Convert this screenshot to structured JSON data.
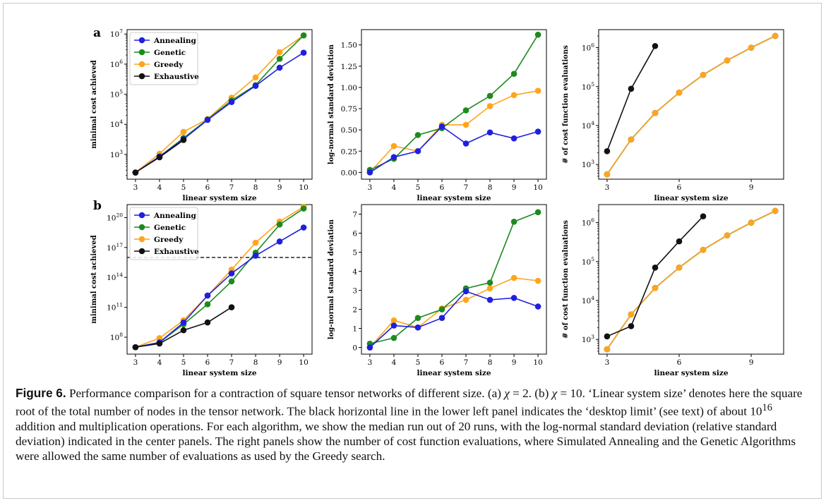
{
  "figure": {
    "panel_labels": [
      "a",
      "b"
    ]
  },
  "caption": {
    "label": "Figure 6.",
    "parts": [
      " Performance comparison for a contraction of square tensor networks of different size. (a) ",
      "χ",
      " = 2. (b) ",
      "χ",
      " = 10. ‘Linear system size’ denotes here the square root of the total number of nodes in the tensor network. The black horizontal line in the lower left panel indicates the ‘desktop limit’ (see text) of about 10",
      "16",
      " addition and multiplication operations. For each algorithm, we show the median run out of 20 runs, with the log-normal standard deviation (relative standard deviation) indicated in the center panels. The right panels show the number of cost function evaluations, where Simulated Annealing and the Genetic Algorithms were allowed the same number of evaluations as used by the Greedy search."
    ]
  },
  "colors": {
    "Annealing": "#1f1fe0",
    "Genetic": "#1e8a1e",
    "Greedy": "#ffa41c",
    "Exhaustive": "#111111"
  },
  "chart_data": [
    {
      "id": "a-left",
      "panel": "a",
      "type": "line",
      "scale": "log",
      "xlabel": "linear system size",
      "ylabel": "minimal cost achieved",
      "xlim": [
        2.65,
        10.35
      ],
      "ylim": [
        150,
        14000000
      ],
      "xticks": [
        3,
        4,
        5,
        6,
        7,
        8,
        9,
        10
      ],
      "yticks": [
        {
          "value": 1000,
          "base": "10",
          "exp": "3"
        },
        {
          "value": 10000,
          "base": "10",
          "exp": "4"
        },
        {
          "value": 100000,
          "base": "10",
          "exp": "5"
        },
        {
          "value": 1000000,
          "base": "10",
          "exp": "6"
        },
        {
          "value": 10000000,
          "base": "10",
          "exp": "7"
        }
      ],
      "legend": {
        "position": "upper-left",
        "entries": [
          "Annealing",
          "Genetic",
          "Greedy",
          "Exhaustive"
        ]
      },
      "series": [
        {
          "name": "Greedy",
          "x": [
            3,
            4,
            5,
            6,
            7,
            8,
            9,
            10
          ],
          "values": [
            250,
            1050,
            5600,
            15000,
            77000,
            360000,
            2500000,
            9000000
          ]
        },
        {
          "name": "Genetic",
          "x": [
            3,
            4,
            5,
            6,
            7,
            8,
            9,
            10
          ],
          "values": [
            250,
            850,
            3500,
            14500,
            62000,
            200000,
            1500000,
            9000000
          ]
        },
        {
          "name": "Annealing",
          "x": [
            3,
            4,
            5,
            6,
            7,
            8,
            9,
            10
          ],
          "values": [
            250,
            850,
            3200,
            14000,
            55000,
            190000,
            760000,
            2400000
          ]
        },
        {
          "name": "Exhaustive",
          "x": [
            3,
            4,
            5
          ],
          "values": [
            250,
            800,
            3000
          ]
        }
      ]
    },
    {
      "id": "a-center",
      "panel": "a",
      "type": "line",
      "scale": "linear",
      "xlabel": "linear system size",
      "ylabel": "log-normal standard deviation",
      "xlim": [
        2.65,
        10.35
      ],
      "ylim": [
        -0.08,
        1.68
      ],
      "xticks": [
        3,
        4,
        5,
        6,
        7,
        8,
        9,
        10
      ],
      "yticks": [
        {
          "value": 0,
          "label": "0.00"
        },
        {
          "value": 0.25,
          "label": "0.25"
        },
        {
          "value": 0.5,
          "label": "0.50"
        },
        {
          "value": 0.75,
          "label": "0.75"
        },
        {
          "value": 1.0,
          "label": "1.00"
        },
        {
          "value": 1.25,
          "label": "1.25"
        },
        {
          "value": 1.5,
          "label": "1.50"
        }
      ],
      "series": [
        {
          "name": "Greedy",
          "x": [
            3,
            4,
            5,
            6,
            7,
            8,
            9,
            10
          ],
          "values": [
            0.0,
            0.31,
            0.25,
            0.56,
            0.56,
            0.78,
            0.91,
            0.96
          ]
        },
        {
          "name": "Genetic",
          "x": [
            3,
            4,
            5,
            6,
            7,
            8,
            9,
            10
          ],
          "values": [
            0.03,
            0.16,
            0.44,
            0.52,
            0.73,
            0.9,
            1.16,
            1.62
          ]
        },
        {
          "name": "Annealing",
          "x": [
            3,
            4,
            5,
            6,
            7,
            8,
            9,
            10
          ],
          "values": [
            0.0,
            0.18,
            0.25,
            0.54,
            0.34,
            0.47,
            0.4,
            0.48
          ]
        }
      ]
    },
    {
      "id": "a-right",
      "panel": "a",
      "type": "line",
      "scale": "log",
      "xlabel": "linear system size",
      "ylabel": "# of cost function evaluations",
      "xlim": [
        2.65,
        10.35
      ],
      "ylim": [
        420,
        2900000
      ],
      "xticks": [
        3,
        6,
        9
      ],
      "yticks": [
        {
          "value": 1000,
          "base": "10",
          "exp": "3"
        },
        {
          "value": 10000,
          "base": "10",
          "exp": "4"
        },
        {
          "value": 100000,
          "base": "10",
          "exp": "5"
        },
        {
          "value": 1000000,
          "base": "10",
          "exp": "6"
        }
      ],
      "series": [
        {
          "name": "Annealing",
          "x": [
            3,
            4,
            5,
            6,
            7,
            8,
            9,
            10
          ],
          "values": [
            560,
            4400,
            21000,
            70000,
            200000,
            470000,
            1000000,
            2000000
          ]
        },
        {
          "name": "Genetic",
          "x": [
            3,
            4,
            5,
            6,
            7,
            8,
            9,
            10
          ],
          "values": [
            560,
            4400,
            21000,
            70000,
            200000,
            470000,
            1000000,
            2000000
          ]
        },
        {
          "name": "Greedy",
          "x": [
            3,
            4,
            5,
            6,
            7,
            8,
            9,
            10
          ],
          "values": [
            560,
            4400,
            21000,
            70000,
            200000,
            470000,
            1000000,
            2000000
          ]
        },
        {
          "name": "Exhaustive",
          "x": [
            3,
            4,
            5
          ],
          "values": [
            2200,
            88000,
            1100000
          ]
        }
      ]
    },
    {
      "id": "b-left",
      "panel": "b",
      "type": "line",
      "scale": "log",
      "xlabel": "linear system size",
      "ylabel": "minimal cost achieved",
      "xlim": [
        2.65,
        10.35
      ],
      "ylim": [
        2000000,
        2e+21
      ],
      "xticks": [
        3,
        4,
        5,
        6,
        7,
        8,
        9,
        10
      ],
      "yticks": [
        {
          "value": 100000000.0,
          "base": "10",
          "exp": "8"
        },
        {
          "value": 100000000000.0,
          "base": "10",
          "exp": "11"
        },
        {
          "value": 100000000000000.0,
          "base": "10",
          "exp": "14"
        },
        {
          "value": 1e+17,
          "base": "10",
          "exp": "17"
        },
        {
          "value": 1e+20,
          "base": "10",
          "exp": "20"
        }
      ],
      "hline": {
        "value": 1e+16,
        "color": "#111111",
        "dashed": true
      },
      "legend": {
        "position": "upper-left",
        "entries": [
          "Annealing",
          "Genetic",
          "Greedy",
          "Exhaustive"
        ]
      },
      "series": [
        {
          "name": "Greedy",
          "x": [
            3,
            4,
            5,
            6,
            7,
            8,
            9,
            10
          ],
          "values": [
            10000000,
            80000000,
            5000000000.0,
            1500000000000.0,
            600000000000000.0,
            3e+17,
            4e+19,
            1.2e+21
          ]
        },
        {
          "name": "Genetic",
          "x": [
            3,
            4,
            5,
            6,
            7,
            8,
            9,
            10
          ],
          "values": [
            10000000,
            30000000,
            2000000000.0,
            200000000000.0,
            40000000000000.0,
            3e+16,
            2e+19,
            8e+20
          ]
        },
        {
          "name": "Annealing",
          "x": [
            3,
            4,
            5,
            6,
            7,
            8,
            9,
            10
          ],
          "values": [
            10000000,
            30000000,
            3000000000.0,
            1500000000000.0,
            250000000000000.0,
            1.5e+16,
            4e+17,
            1e+19
          ]
        },
        {
          "name": "Exhaustive",
          "x": [
            3,
            4,
            5,
            6,
            7
          ],
          "values": [
            10000000,
            23000000,
            500000000.0,
            3000000000.0,
            100000000000.0
          ]
        }
      ]
    },
    {
      "id": "b-center",
      "panel": "b",
      "type": "line",
      "scale": "linear",
      "xlabel": "linear system size",
      "ylabel": "log-normal standard deviation",
      "xlim": [
        2.65,
        10.35
      ],
      "ylim": [
        -0.35,
        7.5
      ],
      "xticks": [
        3,
        4,
        5,
        6,
        7,
        8,
        9,
        10
      ],
      "yticks": [
        {
          "value": 0,
          "label": "0"
        },
        {
          "value": 1,
          "label": "1"
        },
        {
          "value": 2,
          "label": "2"
        },
        {
          "value": 3,
          "label": "3"
        },
        {
          "value": 4,
          "label": "4"
        },
        {
          "value": 5,
          "label": "5"
        },
        {
          "value": 6,
          "label": "6"
        },
        {
          "value": 7,
          "label": "7"
        }
      ],
      "series": [
        {
          "name": "Greedy",
          "x": [
            3,
            4,
            5,
            6,
            7,
            8,
            9,
            10
          ],
          "values": [
            0.0,
            1.42,
            1.05,
            2.05,
            2.5,
            3.1,
            3.65,
            3.5
          ]
        },
        {
          "name": "Genetic",
          "x": [
            3,
            4,
            5,
            6,
            7,
            8,
            9,
            10
          ],
          "values": [
            0.2,
            0.5,
            1.55,
            2.0,
            3.1,
            3.4,
            6.6,
            7.1
          ]
        },
        {
          "name": "Annealing",
          "x": [
            3,
            4,
            5,
            6,
            7,
            8,
            9,
            10
          ],
          "values": [
            0.0,
            1.15,
            1.05,
            1.55,
            2.95,
            2.5,
            2.6,
            2.15
          ]
        }
      ]
    },
    {
      "id": "b-right",
      "panel": "b",
      "type": "line",
      "scale": "log",
      "xlabel": "linear system size",
      "ylabel": "# of cost function evaluations",
      "xlim": [
        2.65,
        10.35
      ],
      "ylim": [
        420,
        2900000
      ],
      "xticks": [
        3,
        6,
        9
      ],
      "yticks": [
        {
          "value": 1000,
          "base": "10",
          "exp": "3"
        },
        {
          "value": 10000,
          "base": "10",
          "exp": "4"
        },
        {
          "value": 100000,
          "base": "10",
          "exp": "5"
        },
        {
          "value": 1000000,
          "base": "10",
          "exp": "6"
        }
      ],
      "series": [
        {
          "name": "Annealing",
          "x": [
            3,
            4,
            5,
            6,
            7,
            8,
            9,
            10
          ],
          "values": [
            560,
            4400,
            21000,
            70000,
            200000,
            470000,
            1000000,
            2000000
          ]
        },
        {
          "name": "Genetic",
          "x": [
            3,
            4,
            5,
            6,
            7,
            8,
            9,
            10
          ],
          "values": [
            560,
            4400,
            21000,
            70000,
            200000,
            470000,
            1000000,
            2000000
          ]
        },
        {
          "name": "Greedy",
          "x": [
            3,
            4,
            5,
            6,
            7,
            8,
            9,
            10
          ],
          "values": [
            560,
            4400,
            21000,
            70000,
            200000,
            470000,
            1000000,
            2000000
          ]
        },
        {
          "name": "Exhaustive",
          "x": [
            3,
            4,
            5,
            6,
            7
          ],
          "values": [
            1200,
            2200,
            70000,
            330000,
            1450000
          ]
        }
      ]
    }
  ]
}
